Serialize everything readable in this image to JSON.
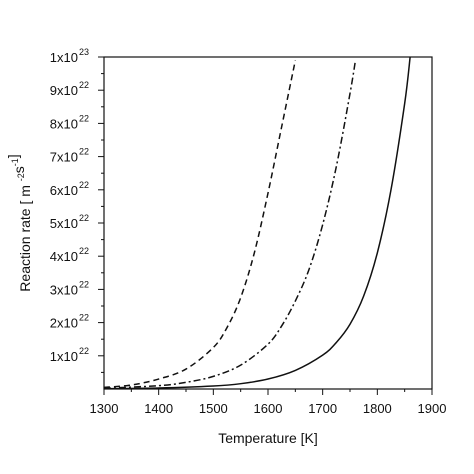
{
  "chart_data": {
    "type": "line",
    "xlabel": "Temperature [K]",
    "ylabel": "Reaction rate [ m",
    "ylabel_sup1": "-2",
    "ylabel_mid": "s",
    "ylabel_sup2": "-1",
    "ylabel_end": "]",
    "xlim": [
      1300,
      1900
    ],
    "ylim": [
      0,
      1e+23
    ],
    "x_ticks": [
      1300,
      1400,
      1500,
      1600,
      1700,
      1800,
      1900
    ],
    "y_ticks": [
      {
        "value": 1e+22,
        "mantissa": "1x10",
        "exp": "22"
      },
      {
        "value": 2e+22,
        "mantissa": "2x10",
        "exp": "22"
      },
      {
        "value": 3e+22,
        "mantissa": "3x10",
        "exp": "22"
      },
      {
        "value": 4e+22,
        "mantissa": "4x10",
        "exp": "22"
      },
      {
        "value": 5e+22,
        "mantissa": "5x10",
        "exp": "22"
      },
      {
        "value": 6e+22,
        "mantissa": "6x10",
        "exp": "22"
      },
      {
        "value": 7e+22,
        "mantissa": "7x10",
        "exp": "22"
      },
      {
        "value": 8e+22,
        "mantissa": "8x10",
        "exp": "22"
      },
      {
        "value": 9e+22,
        "mantissa": "9x10",
        "exp": "22"
      },
      {
        "value": 1e+23,
        "mantissa": "1x10",
        "exp": "23"
      }
    ],
    "grid": false,
    "legend": "none",
    "series": [
      {
        "style": "dashed",
        "x": [
          1300,
          1350,
          1400,
          1450,
          1500,
          1525,
          1550,
          1575,
          1600,
          1625,
          1650
        ],
        "y": [
          5e+20,
          1.2e+21,
          3e+21,
          6e+21,
          1.25e+22,
          1.85e+22,
          2.75e+22,
          4.1e+22,
          5.9e+22,
          7.9e+22,
          9.9e+22
        ]
      },
      {
        "style": "dashdot",
        "x": [
          1300,
          1400,
          1450,
          1500,
          1550,
          1600,
          1625,
          1650,
          1675,
          1700,
          1725,
          1750,
          1760
        ],
        "y": [
          2e+20,
          1e+21,
          2e+21,
          3.8e+21,
          7.2e+21,
          1.35e+22,
          1.9e+22,
          2.65e+22,
          3.6e+22,
          4.95e+22,
          6.7e+22,
          8.9e+22,
          9.9e+22
        ]
      },
      {
        "style": "solid",
        "x": [
          1300,
          1400,
          1500,
          1550,
          1600,
          1650,
          1700,
          1725,
          1750,
          1775,
          1800,
          1825,
          1850,
          1860
        ],
        "y": [
          1e+20,
          3e+20,
          9e+20,
          1.6e+21,
          3e+21,
          5.6e+21,
          1.02e+22,
          1.4e+22,
          1.95e+22,
          2.8e+22,
          4.1e+22,
          6e+22,
          8.6e+22,
          1e+23
        ]
      }
    ]
  }
}
